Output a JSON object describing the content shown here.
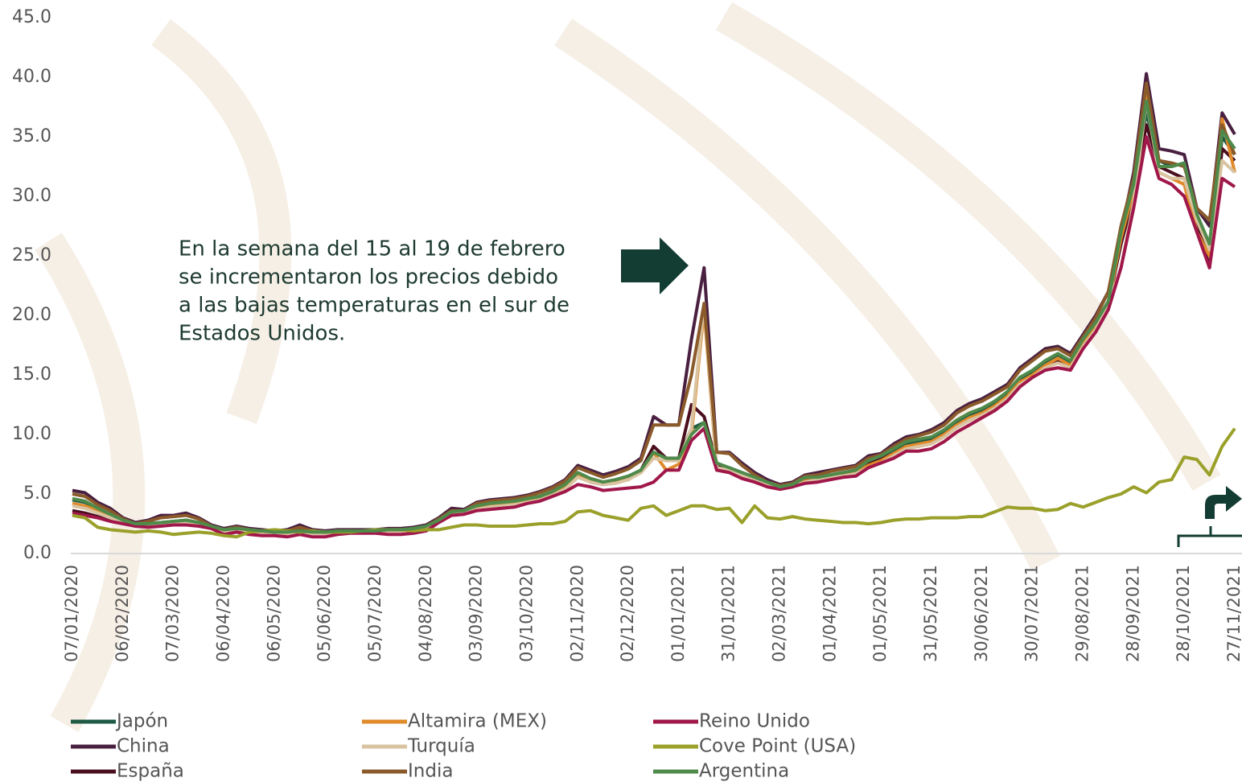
{
  "chart_data": {
    "type": "line",
    "annotation": [
      "En la semana del 15 al 19 de febrero",
      "se incrementaron los precios debido",
      "a las bajas temperaturas en el sur de",
      "Estados Unidos."
    ],
    "categories": [
      "07/01/2020",
      null,
      null,
      null,
      "06/02/2020",
      null,
      null,
      null,
      "07/03/2020",
      null,
      null,
      null,
      "06/04/2020",
      null,
      null,
      null,
      "06/05/2020",
      null,
      null,
      null,
      "05/06/2020",
      null,
      null,
      null,
      "05/07/2020",
      null,
      null,
      null,
      "04/08/2020",
      null,
      null,
      null,
      "03/09/2020",
      null,
      null,
      null,
      "03/10/2020",
      null,
      null,
      null,
      "02/11/2020",
      null,
      null,
      null,
      "02/12/2020",
      null,
      null,
      null,
      "01/01/2021",
      null,
      null,
      null,
      "31/01/2021",
      null,
      null,
      null,
      "02/03/2021",
      null,
      null,
      null,
      "01/04/2021",
      null,
      null,
      null,
      "01/05/2021",
      null,
      null,
      null,
      "31/05/2021",
      null,
      null,
      null,
      "30/06/2021",
      null,
      null,
      null,
      "30/07/2021",
      null,
      null,
      null,
      "29/08/2021",
      null,
      null,
      null,
      "28/09/2021",
      null,
      null,
      null,
      "28/10/2021",
      null,
      null,
      null,
      "27/11/2021"
    ],
    "ylim": [
      0,
      45
    ],
    "yticks": [
      {
        "value": 0,
        "label": "0.0"
      },
      {
        "value": 5,
        "label": "5.0"
      },
      {
        "value": 10,
        "label": "10.0"
      },
      {
        "value": 15,
        "label": "15.0"
      },
      {
        "value": 20,
        "label": "20.0"
      },
      {
        "value": 25,
        "label": "25.0"
      },
      {
        "value": 30,
        "label": "30.0"
      },
      {
        "value": 35,
        "label": "35.0"
      },
      {
        "value": 40,
        "label": "40.0"
      },
      {
        "value": 45,
        "label": "45.0"
      }
    ],
    "grid": false,
    "series": [
      {
        "name": "Japón",
        "color": "#1f5a45",
        "values": [
          4.5,
          4.3,
          3.8,
          3.3,
          2.8,
          2.5,
          2.5,
          2.6,
          2.7,
          2.8,
          2.6,
          2.3,
          2.0,
          2.1,
          2.0,
          1.9,
          1.8,
          1.8,
          1.9,
          1.8,
          1.8,
          1.9,
          1.9,
          1.9,
          1.9,
          2.0,
          2.0,
          2.1,
          2.3,
          2.8,
          3.5,
          3.6,
          4.0,
          4.2,
          4.3,
          4.4,
          4.6,
          4.8,
          5.2,
          5.8,
          6.8,
          6.3,
          6.0,
          6.2,
          6.5,
          7.0,
          8.5,
          8.0,
          8.0,
          10.5,
          11.0,
          7.5,
          7.2,
          6.8,
          6.4,
          6.0,
          5.6,
          5.8,
          6.3,
          6.4,
          6.6,
          6.8,
          7.0,
          7.6,
          8.0,
          8.6,
          9.2,
          9.4,
          9.6,
          10.2,
          11.0,
          11.6,
          12.0,
          12.6,
          13.4,
          14.6,
          15.2,
          16.0,
          16.6,
          16.0,
          17.8,
          19.2,
          21.0,
          27.0,
          31.0,
          37.0,
          33.0,
          32.5,
          32.8,
          28.0,
          25.0,
          35.0,
          33.5
        ]
      },
      {
        "name": "China",
        "color": "#4a2040",
        "values": [
          5.3,
          5.1,
          4.3,
          3.8,
          3.0,
          2.6,
          2.8,
          3.2,
          3.2,
          3.4,
          3.0,
          2.4,
          2.1,
          2.3,
          2.1,
          2.0,
          1.9,
          2.0,
          2.4,
          2.0,
          1.9,
          2.0,
          2.0,
          2.0,
          2.0,
          2.1,
          2.1,
          2.2,
          2.4,
          3.0,
          3.8,
          3.7,
          4.3,
          4.5,
          4.6,
          4.7,
          4.9,
          5.2,
          5.6,
          6.2,
          7.4,
          7.0,
          6.6,
          6.9,
          7.3,
          8.0,
          11.5,
          10.8,
          10.8,
          18.0,
          24.0,
          8.5,
          8.5,
          7.6,
          6.8,
          6.2,
          5.8,
          6.0,
          6.6,
          6.8,
          7.0,
          7.2,
          7.4,
          8.2,
          8.4,
          9.2,
          9.8,
          10.0,
          10.4,
          11.0,
          12.0,
          12.6,
          13.0,
          13.6,
          14.2,
          15.6,
          16.4,
          17.2,
          17.4,
          16.8,
          18.4,
          20.0,
          22.0,
          27.0,
          32.0,
          40.3,
          34.0,
          33.8,
          33.5,
          29.0,
          27.5,
          37.0,
          35.2
        ]
      },
      {
        "name": "España",
        "color": "#4a0e1e",
        "values": [
          3.6,
          3.4,
          3.1,
          2.8,
          2.6,
          2.3,
          2.3,
          2.5,
          2.5,
          2.6,
          2.4,
          2.2,
          1.8,
          2.0,
          1.8,
          1.8,
          1.7,
          1.7,
          2.1,
          1.8,
          1.7,
          1.8,
          1.8,
          1.8,
          1.8,
          1.9,
          1.9,
          2.0,
          2.2,
          2.7,
          3.3,
          3.5,
          3.8,
          4.0,
          4.1,
          4.2,
          4.4,
          4.5,
          5.0,
          5.5,
          6.6,
          6.0,
          5.8,
          6.0,
          6.2,
          7.0,
          9.0,
          8.0,
          8.0,
          12.5,
          11.5,
          7.5,
          7.0,
          6.6,
          6.2,
          5.9,
          5.6,
          5.8,
          6.2,
          6.4,
          6.5,
          6.7,
          6.9,
          7.5,
          7.9,
          8.4,
          9.0,
          9.0,
          9.3,
          10.0,
          10.8,
          11.2,
          11.8,
          12.4,
          13.2,
          14.4,
          15.0,
          15.8,
          16.2,
          15.8,
          17.5,
          19.0,
          21.0,
          26.0,
          30.0,
          36.0,
          32.5,
          32.0,
          31.5,
          28.0,
          24.0,
          34.0,
          33.0
        ]
      },
      {
        "name": "Altamira (MEX)",
        "color": "#e08a2a",
        "values": [
          4.2,
          4.0,
          3.6,
          3.2,
          2.7,
          2.4,
          2.4,
          2.5,
          2.6,
          2.7,
          2.5,
          2.2,
          1.9,
          2.0,
          1.9,
          1.8,
          1.7,
          1.7,
          1.8,
          1.7,
          1.7,
          1.8,
          1.8,
          1.8,
          1.8,
          1.9,
          1.9,
          2.0,
          2.2,
          2.7,
          3.4,
          3.5,
          3.9,
          4.1,
          4.2,
          4.3,
          4.5,
          4.7,
          5.1,
          5.6,
          6.6,
          6.2,
          5.9,
          6.0,
          6.3,
          6.8,
          8.5,
          7.0,
          7.5,
          10.0,
          20.5,
          7.0,
          6.9,
          6.5,
          6.2,
          5.8,
          5.4,
          5.6,
          6.1,
          6.2,
          6.4,
          6.6,
          6.8,
          7.4,
          7.8,
          8.4,
          9.0,
          9.2,
          9.4,
          10.0,
          10.8,
          11.4,
          11.8,
          12.4,
          13.2,
          14.4,
          15.0,
          15.8,
          16.4,
          15.8,
          17.6,
          19.0,
          21.0,
          26.5,
          30.5,
          39.0,
          32.0,
          31.5,
          31.0,
          27.0,
          25.0,
          36.5,
          32.0
        ]
      },
      {
        "name": "Turquía",
        "color": "#d9c3a0",
        "values": [
          4.0,
          3.8,
          3.4,
          3.0,
          2.6,
          2.3,
          2.3,
          2.4,
          2.5,
          2.6,
          2.4,
          2.1,
          1.8,
          1.9,
          1.8,
          1.7,
          1.7,
          1.7,
          1.8,
          1.7,
          1.7,
          1.8,
          1.8,
          1.8,
          1.8,
          1.9,
          1.9,
          2.0,
          2.2,
          2.6,
          3.2,
          3.4,
          3.7,
          3.9,
          4.0,
          4.1,
          4.3,
          4.5,
          4.9,
          5.4,
          6.4,
          6.0,
          5.8,
          5.9,
          6.2,
          6.8,
          8.0,
          7.8,
          7.8,
          10.5,
          21.0,
          7.2,
          7.0,
          6.6,
          6.2,
          5.8,
          5.4,
          5.6,
          6.0,
          6.2,
          6.4,
          6.5,
          6.7,
          7.2,
          7.6,
          8.2,
          8.8,
          9.0,
          9.2,
          9.8,
          10.6,
          11.2,
          11.6,
          12.2,
          13.0,
          14.2,
          14.8,
          15.6,
          16.0,
          15.6,
          17.4,
          18.8,
          21.0,
          24.0,
          29.5,
          38.0,
          32.0,
          31.5,
          31.5,
          28.0,
          25.5,
          33.0,
          32.0
        ]
      },
      {
        "name": "India",
        "color": "#8a5a2b",
        "values": [
          5.0,
          4.8,
          4.1,
          3.6,
          2.9,
          2.5,
          2.7,
          3.0,
          3.1,
          3.2,
          2.9,
          2.3,
          2.0,
          2.2,
          2.0,
          1.9,
          1.8,
          1.9,
          2.2,
          1.9,
          1.8,
          1.9,
          1.9,
          1.9,
          1.9,
          2.0,
          2.0,
          2.1,
          2.3,
          2.9,
          3.6,
          3.6,
          4.2,
          4.4,
          4.5,
          4.6,
          4.8,
          5.1,
          5.5,
          6.1,
          7.2,
          6.8,
          6.4,
          6.7,
          7.1,
          7.8,
          10.8,
          10.8,
          10.8,
          15.0,
          21.0,
          8.5,
          8.4,
          7.4,
          6.6,
          6.0,
          5.7,
          5.9,
          6.5,
          6.6,
          6.9,
          7.1,
          7.3,
          8.0,
          8.3,
          9.0,
          9.6,
          9.9,
          10.2,
          10.8,
          11.8,
          12.4,
          12.8,
          13.4,
          14.0,
          15.4,
          16.2,
          17.0,
          17.2,
          16.6,
          18.2,
          19.8,
          22.0,
          27.5,
          31.5,
          39.5,
          33.0,
          32.8,
          32.5,
          29.0,
          28.0,
          36.0,
          33.5
        ]
      },
      {
        "name": "Reino Unido",
        "color": "#a0174a",
        "values": [
          3.4,
          3.2,
          3.0,
          2.7,
          2.5,
          2.3,
          2.2,
          2.3,
          2.4,
          2.4,
          2.3,
          2.1,
          1.6,
          1.8,
          1.6,
          1.5,
          1.5,
          1.4,
          1.6,
          1.4,
          1.4,
          1.6,
          1.7,
          1.7,
          1.7,
          1.6,
          1.6,
          1.7,
          1.9,
          2.6,
          3.2,
          3.3,
          3.6,
          3.7,
          3.8,
          3.9,
          4.2,
          4.4,
          4.8,
          5.2,
          5.8,
          5.6,
          5.3,
          5.4,
          5.5,
          5.6,
          6.0,
          7.0,
          7.0,
          9.5,
          10.5,
          7.0,
          6.8,
          6.3,
          6.0,
          5.6,
          5.4,
          5.6,
          5.9,
          6.0,
          6.2,
          6.4,
          6.5,
          7.2,
          7.6,
          8.0,
          8.6,
          8.6,
          8.8,
          9.4,
          10.2,
          10.8,
          11.4,
          12.0,
          12.8,
          14.0,
          14.8,
          15.4,
          15.6,
          15.4,
          17.2,
          18.6,
          20.5,
          24.0,
          29.0,
          35.0,
          31.5,
          31.0,
          30.0,
          27.0,
          24.0,
          31.5,
          30.8
        ]
      },
      {
        "name": "Cove Point (USA)",
        "color": "#9aa02a",
        "values": [
          3.2,
          3.0,
          2.2,
          2.0,
          1.9,
          1.8,
          1.9,
          1.8,
          1.6,
          1.7,
          1.8,
          1.7,
          1.5,
          1.4,
          1.8,
          1.9,
          2.0,
          1.9,
          1.8,
          1.9,
          1.8,
          1.8,
          1.8,
          1.9,
          2.0,
          2.0,
          2.0,
          1.9,
          2.0,
          2.0,
          2.2,
          2.4,
          2.4,
          2.3,
          2.3,
          2.3,
          2.4,
          2.5,
          2.5,
          2.7,
          3.5,
          3.6,
          3.2,
          3.0,
          2.8,
          3.8,
          4.0,
          3.2,
          3.6,
          4.0,
          4.0,
          3.7,
          3.8,
          2.6,
          4.0,
          3.0,
          2.9,
          3.1,
          2.9,
          2.8,
          2.7,
          2.6,
          2.6,
          2.5,
          2.6,
          2.8,
          2.9,
          2.9,
          3.0,
          3.0,
          3.0,
          3.1,
          3.1,
          3.5,
          3.9,
          3.8,
          3.8,
          3.6,
          3.7,
          4.2,
          3.9,
          4.3,
          4.7,
          5.0,
          5.6,
          5.1,
          6.0,
          6.2,
          8.1,
          7.9,
          6.6,
          9.0,
          10.5
        ]
      },
      {
        "name": "Argentina",
        "color": "#4f8a4a",
        "values": [
          4.6,
          4.4,
          3.8,
          3.3,
          2.8,
          2.5,
          2.5,
          2.6,
          2.7,
          2.8,
          2.6,
          2.3,
          2.0,
          2.1,
          2.0,
          1.9,
          1.8,
          1.8,
          1.9,
          1.8,
          1.8,
          1.9,
          1.9,
          1.9,
          1.9,
          2.0,
          2.0,
          2.1,
          2.3,
          2.8,
          3.5,
          3.6,
          4.0,
          4.2,
          4.3,
          4.4,
          4.6,
          4.8,
          5.2,
          5.8,
          6.8,
          6.3,
          6.0,
          6.2,
          6.5,
          7.0,
          8.5,
          8.0,
          8.0,
          10.0,
          11.0,
          7.6,
          7.2,
          6.8,
          6.4,
          6.0,
          5.6,
          5.8,
          6.4,
          6.4,
          6.6,
          6.8,
          7.0,
          7.8,
          8.2,
          8.8,
          9.4,
          9.6,
          9.8,
          10.4,
          11.2,
          11.8,
          12.2,
          12.8,
          13.6,
          14.8,
          15.4,
          16.2,
          16.8,
          16.2,
          18.0,
          19.4,
          21.2,
          27.0,
          31.0,
          38.0,
          32.5,
          32.5,
          32.8,
          28.5,
          26.0,
          35.5,
          34.0
        ]
      }
    ]
  }
}
